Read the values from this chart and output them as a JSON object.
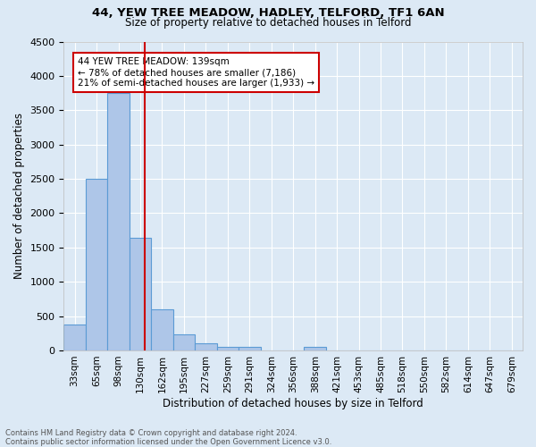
{
  "title1": "44, YEW TREE MEADOW, HADLEY, TELFORD, TF1 6AN",
  "title2": "Size of property relative to detached houses in Telford",
  "xlabel": "Distribution of detached houses by size in Telford",
  "ylabel": "Number of detached properties",
  "footnote1": "Contains HM Land Registry data © Crown copyright and database right 2024.",
  "footnote2": "Contains public sector information licensed under the Open Government Licence v3.0.",
  "bin_labels": [
    "33sqm",
    "65sqm",
    "98sqm",
    "130sqm",
    "162sqm",
    "195sqm",
    "227sqm",
    "259sqm",
    "291sqm",
    "324sqm",
    "356sqm",
    "388sqm",
    "421sqm",
    "453sqm",
    "485sqm",
    "518sqm",
    "550sqm",
    "582sqm",
    "614sqm",
    "647sqm",
    "679sqm"
  ],
  "bar_heights": [
    375,
    2500,
    3750,
    1640,
    600,
    240,
    105,
    55,
    50,
    0,
    0,
    55,
    0,
    0,
    0,
    0,
    0,
    0,
    0,
    0,
    0
  ],
  "bar_color": "#aec6e8",
  "bar_edge_color": "#5b9bd5",
  "bg_color": "#dce9f5",
  "grid_color": "#ffffff",
  "vline_x": 3.72,
  "vline_color": "#cc0000",
  "annotation_text": "44 YEW TREE MEADOW: 139sqm\n← 78% of detached houses are smaller (7,186)\n21% of semi-detached houses are larger (1,933) →",
  "annotation_box_color": "#ffffff",
  "annotation_box_edge": "#cc0000",
  "ylim": [
    0,
    4500
  ],
  "yticks": [
    0,
    500,
    1000,
    1500,
    2000,
    2500,
    3000,
    3500,
    4000,
    4500
  ]
}
